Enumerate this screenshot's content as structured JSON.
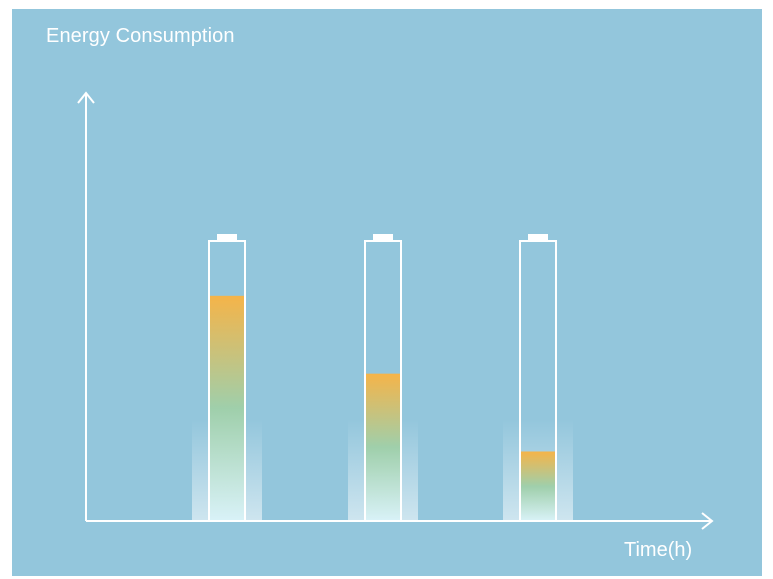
{
  "chart_data": {
    "type": "bar",
    "title": "",
    "ylabel": "Energy Consumption",
    "xlabel": "Time(h)",
    "categories": [
      "",
      "",
      ""
    ],
    "values": [
      0.81,
      0.53,
      0.25
    ],
    "ylim": [
      0,
      1
    ],
    "grid": false,
    "legend": "none",
    "style": "battery",
    "colors": {
      "background": "#93c6dc",
      "axis": "#ffffff",
      "fill_top": "#f5b449",
      "fill_mid": "#9fcfab",
      "fill_bottom": "#d9f2f8"
    }
  }
}
